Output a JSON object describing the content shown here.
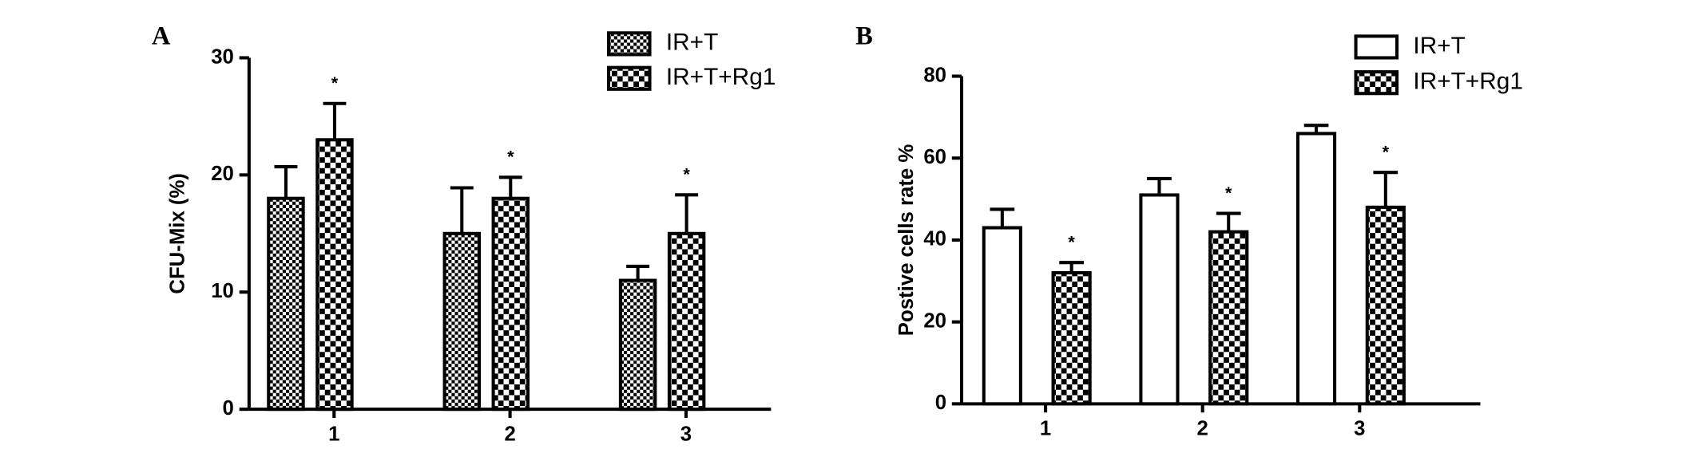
{
  "chart_data": [
    {
      "type": "bar",
      "panel_label": "A",
      "ylabel": "CFU-Mix (%)",
      "categories": [
        "1",
        "2",
        "3"
      ],
      "series": [
        {
          "name": "IR+T",
          "color": "#000000",
          "pattern": "fine-checker",
          "values": [
            18,
            15,
            11
          ],
          "errors": [
            2.7,
            3.9,
            1.2
          ]
        },
        {
          "name": "IR+T+Rg1",
          "color": "#000000",
          "pattern": "checker",
          "values": [
            23,
            18,
            15
          ],
          "errors": [
            3.1,
            1.8,
            3.3
          ],
          "annotations": [
            "*",
            "*",
            "*"
          ]
        }
      ],
      "ylim": [
        0,
        30
      ],
      "yticks": [
        0,
        10,
        20,
        30
      ],
      "legend": "top-right"
    },
    {
      "type": "bar",
      "panel_label": "B",
      "ylabel": "Postive cells rate %",
      "categories": [
        "1",
        "2",
        "3"
      ],
      "series": [
        {
          "name": "IR+T",
          "color": "#000000",
          "pattern": "none",
          "values": [
            43,
            51,
            66
          ],
          "errors": [
            4.5,
            4,
            2
          ]
        },
        {
          "name": "IR+T+Rg1",
          "color": "#000000",
          "pattern": "checker",
          "values": [
            32,
            42,
            48
          ],
          "errors": [
            2.5,
            4.5,
            8.5
          ],
          "annotations": [
            "*",
            "*",
            "*"
          ]
        }
      ],
      "ylim": [
        0,
        80
      ],
      "yticks": [
        0,
        20,
        40,
        60,
        80
      ],
      "legend": "top-right"
    }
  ]
}
